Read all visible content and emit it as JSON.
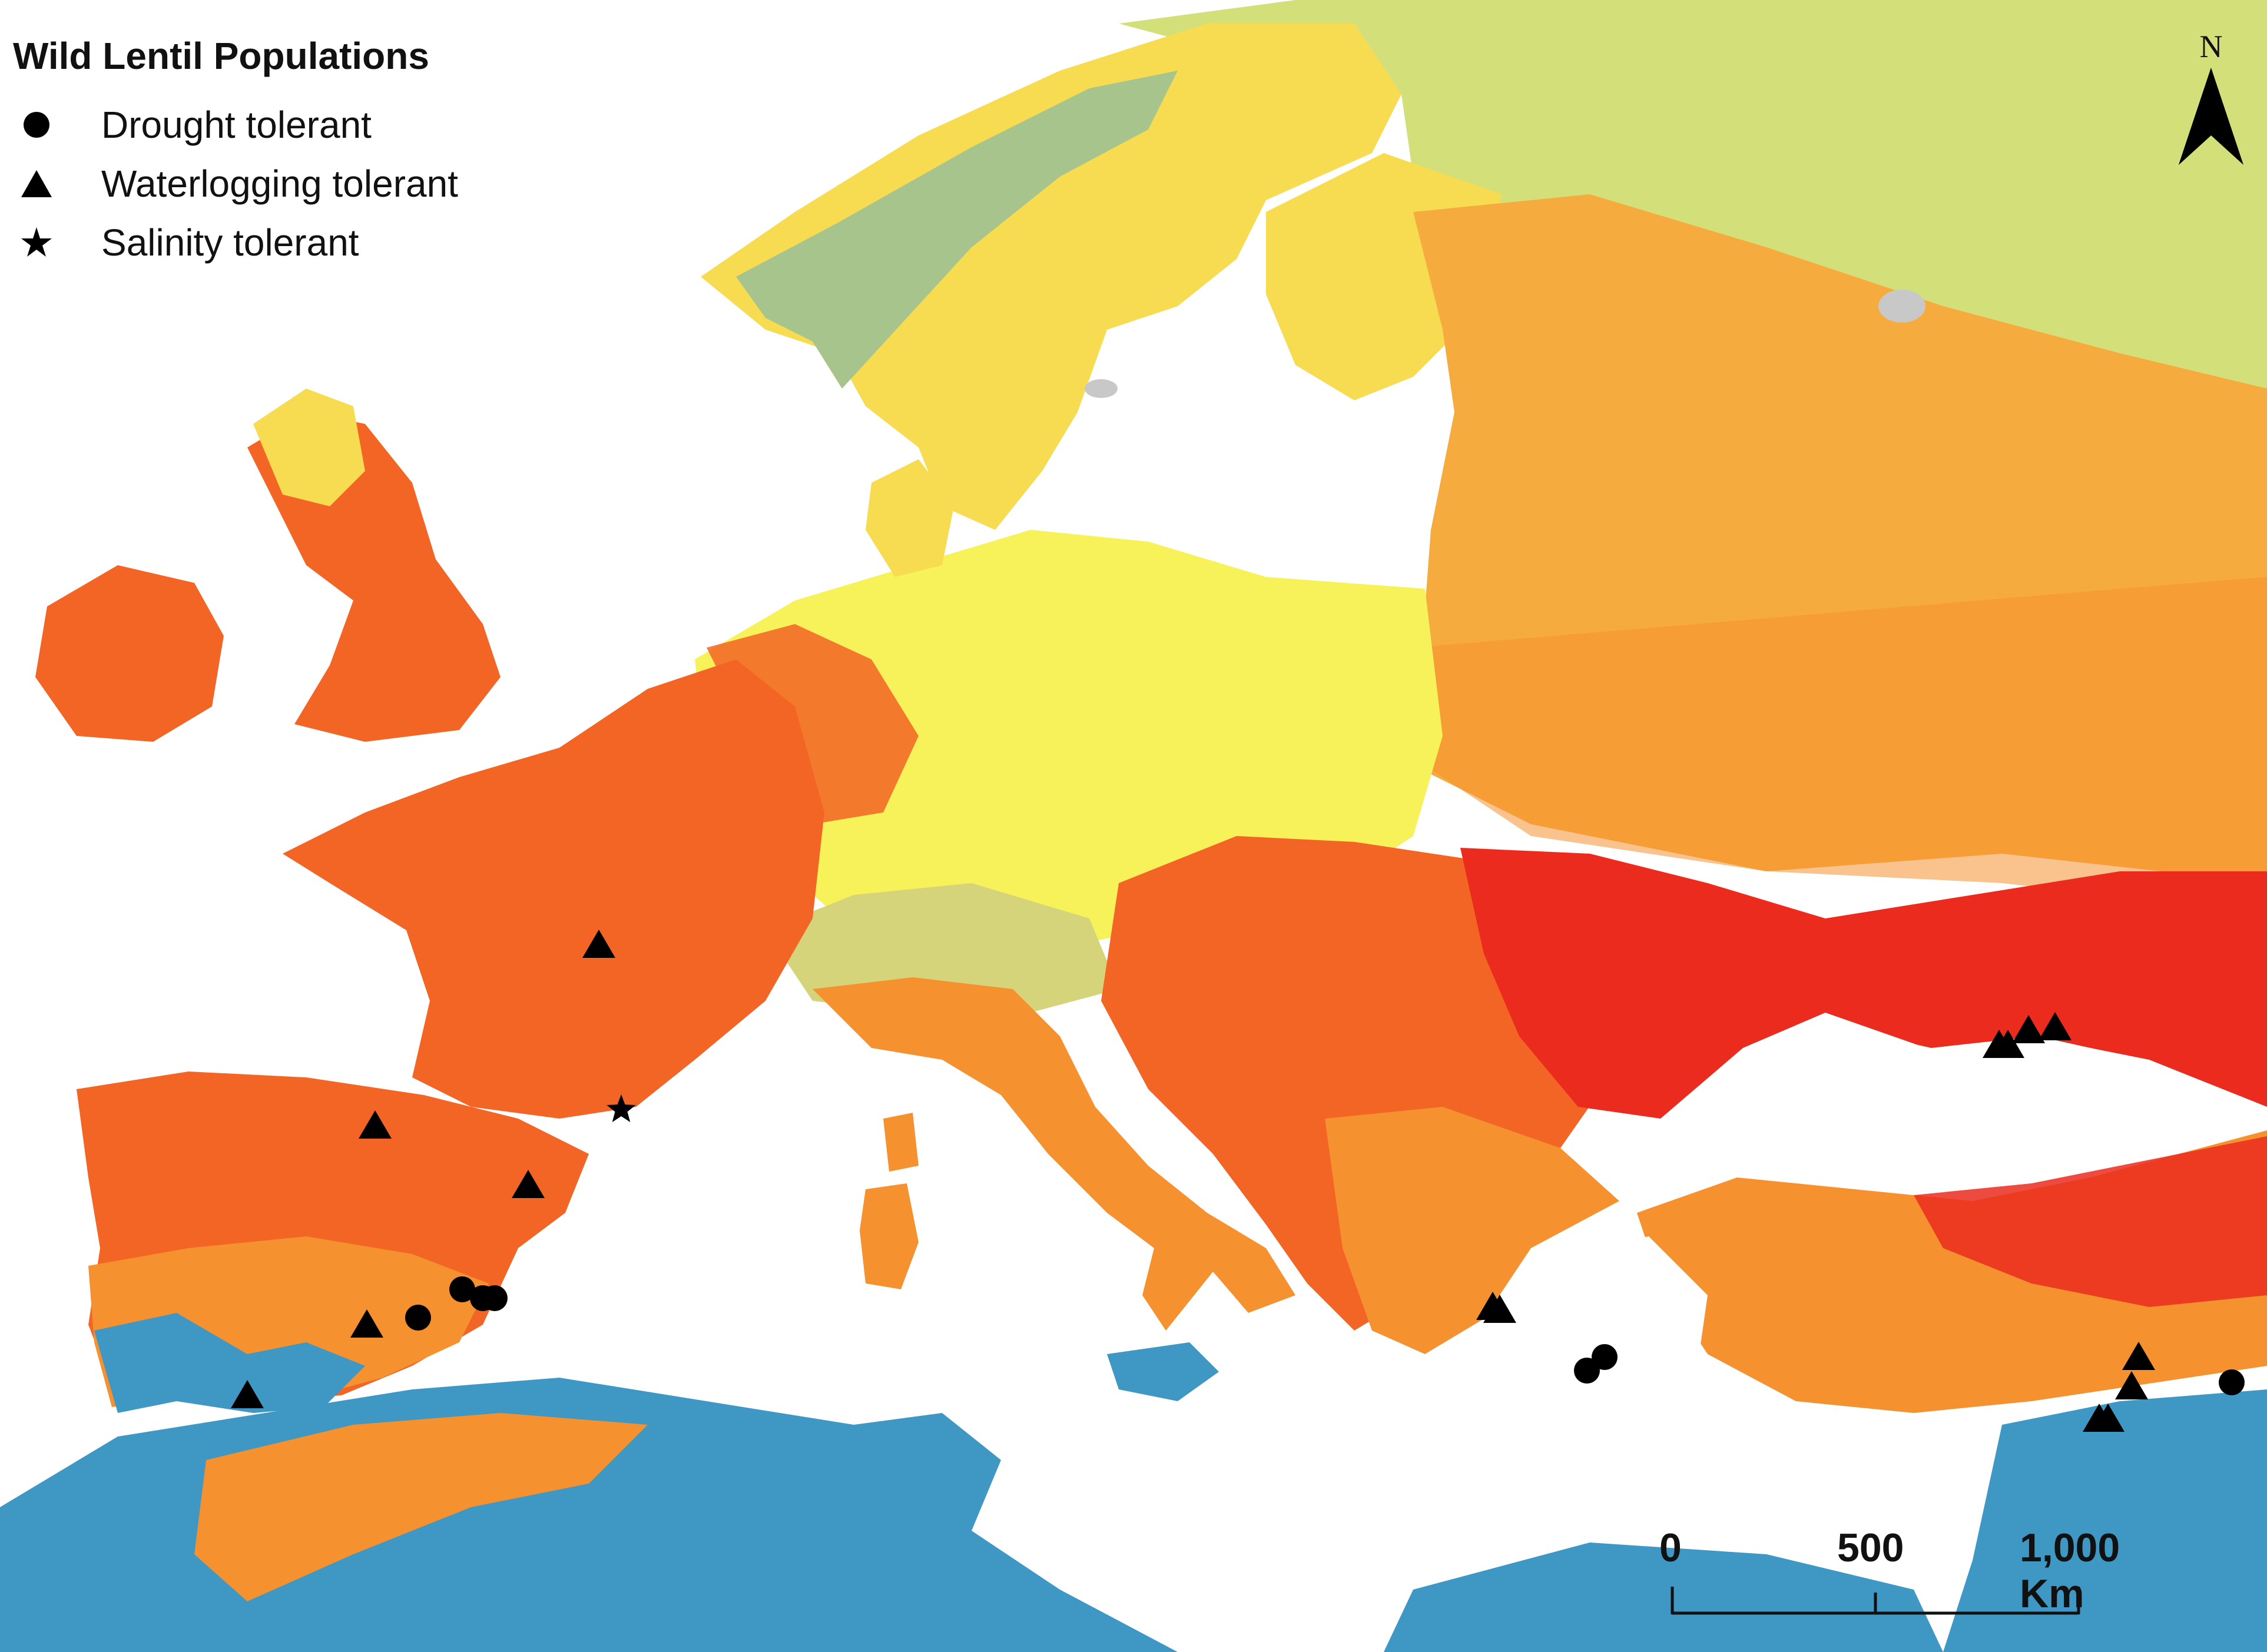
{
  "legend": {
    "title": "Wild Lentil Populations",
    "items": [
      {
        "label": "Drought tolerant",
        "symbol": "circle"
      },
      {
        "label": "Waterlogging tolerant",
        "symbol": "triangle"
      },
      {
        "label": "Salinity tolerant",
        "symbol": "star"
      }
    ]
  },
  "north_arrow": {
    "label": "N"
  },
  "scale_bar": {
    "ticks": [
      "0",
      "500",
      "1,000 Km"
    ]
  },
  "colors": {
    "sea": "#ffffff",
    "zone_green_light": "#d3e07a",
    "zone_green_gray": "#a7c48c",
    "zone_yellow": "#f7dc52",
    "zone_yellow_bright": "#f7f25a",
    "zone_orange_light": "#f6ab3f",
    "zone_orange": "#f5912f",
    "zone_orange_dark": "#f26525",
    "zone_red": "#ea2b1e",
    "zone_blue": "#3f97c4",
    "zone_gray": "#c8c8c8",
    "marker": "#000000"
  }
}
